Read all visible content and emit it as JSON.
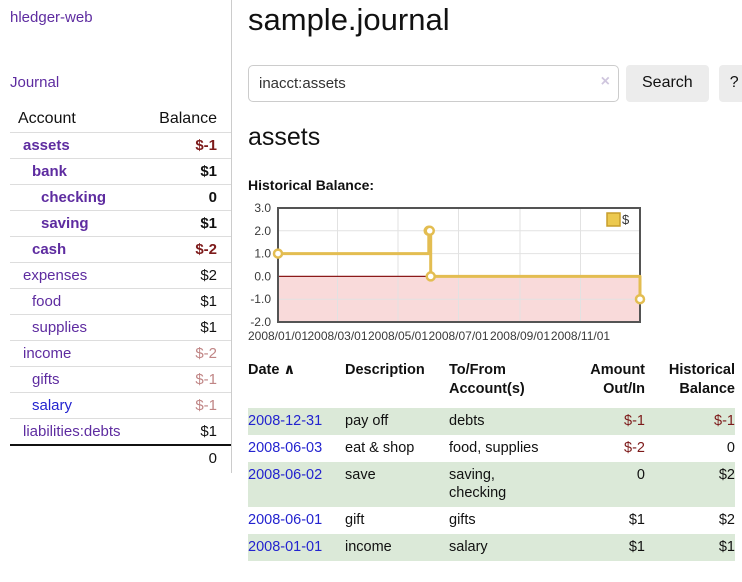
{
  "sidebar": {
    "title": "hledger-web",
    "journal_link": "Journal",
    "accounts_table": {
      "account_header": "Account",
      "balance_header": "Balance",
      "accounts": [
        {
          "name": "assets",
          "level": 1,
          "emphasized": true,
          "link_color": "purple",
          "balance": "$-1",
          "balance_color": "maroon"
        },
        {
          "name": "bank",
          "level": 2,
          "emphasized": true,
          "link_color": "purple",
          "balance": "$1",
          "balance_color": "black"
        },
        {
          "name": "checking",
          "level": 3,
          "emphasized": true,
          "link_color": "purple",
          "balance": "0",
          "balance_color": "black"
        },
        {
          "name": "saving",
          "level": 3,
          "emphasized": true,
          "link_color": "purple",
          "balance": "$1",
          "balance_color": "black"
        },
        {
          "name": "cash",
          "level": 2,
          "emphasized": true,
          "link_color": "purple",
          "balance": "$-2",
          "balance_color": "maroon"
        },
        {
          "name": "expenses",
          "level": 1,
          "emphasized": false,
          "link_color": "purple",
          "balance": "$2",
          "balance_color": "black"
        },
        {
          "name": "food",
          "level": 2,
          "emphasized": false,
          "link_color": "purple",
          "balance": "$1",
          "balance_color": "black"
        },
        {
          "name": "supplies",
          "level": 2,
          "emphasized": false,
          "link_color": "purple",
          "balance": "$1",
          "balance_color": "black"
        },
        {
          "name": "income",
          "level": 1,
          "emphasized": false,
          "link_color": "purple",
          "balance": "$-2",
          "balance_color": "rose"
        },
        {
          "name": "gifts",
          "level": 2,
          "emphasized": false,
          "link_color": "purple",
          "balance": "$-1",
          "balance_color": "rose"
        },
        {
          "name": "salary",
          "level": 2,
          "emphasized": false,
          "link_color": "blue",
          "balance": "$-1",
          "balance_color": "rose"
        },
        {
          "name": "liabilities:debts",
          "level": 1,
          "emphasized": false,
          "link_color": "purple",
          "balance": "$1",
          "balance_color": "black"
        }
      ],
      "total": "0"
    }
  },
  "main": {
    "title": "sample.journal",
    "search": {
      "value": "inacct:assets",
      "clear_icon": "×",
      "search_button": "Search",
      "help_button": "?"
    },
    "account_heading": "assets",
    "chart_title": "Historical Balance:"
  },
  "chart_data": {
    "type": "line",
    "title": "Historical Balance:",
    "xlim": [
      "2008-01-01",
      "2008-12-31"
    ],
    "ylim": [
      -2,
      3
    ],
    "x_ticks": [
      "2008/01/01",
      "2008/03/01",
      "2008/05/01",
      "2008/07/01",
      "2008/09/01",
      "2008/11/01"
    ],
    "y_ticks": [
      3,
      2,
      1,
      0,
      -1,
      -2
    ],
    "grid": true,
    "legend": {
      "position": "top-right",
      "entries": [
        "$"
      ]
    },
    "zero_line_color": "#8b1a1a",
    "negative_region_fill": "#f9dada",
    "series": [
      {
        "name": "$",
        "color": "#e3bd51",
        "interpolation": "step-after",
        "points": [
          {
            "x": "2008-01-01",
            "y": 1
          },
          {
            "x": "2008-06-01",
            "y": 2
          },
          {
            "x": "2008-06-02",
            "y": 2
          },
          {
            "x": "2008-06-03",
            "y": 0
          },
          {
            "x": "2008-12-31",
            "y": -1
          }
        ]
      }
    ]
  },
  "register": {
    "headers": {
      "date": "Date",
      "sort_indicator": "∧",
      "description": "Description",
      "accounts": "To/From Account(s)",
      "amount": "Amount Out/In",
      "balance": "Historical Balance"
    },
    "rows": [
      {
        "date": "2008-12-31",
        "description": "pay off",
        "accounts": "debts",
        "amount": "$-1",
        "amount_color": "maroon",
        "balance": "$-1",
        "balance_color": "maroon"
      },
      {
        "date": "2008-06-03",
        "description": "eat & shop",
        "accounts": "food, supplies",
        "amount": "$-2",
        "amount_color": "maroon",
        "balance": "0",
        "balance_color": "black"
      },
      {
        "date": "2008-06-02",
        "description": "save",
        "accounts": "saving, checking",
        "amount": "0",
        "amount_color": "black",
        "balance": "$2",
        "balance_color": "black"
      },
      {
        "date": "2008-06-01",
        "description": "gift",
        "accounts": "gifts",
        "amount": "$1",
        "amount_color": "black",
        "balance": "$2",
        "balance_color": "black"
      },
      {
        "date": "2008-01-01",
        "description": "income",
        "accounts": "salary",
        "amount": "$1",
        "amount_color": "black",
        "balance": "$1",
        "balance_color": "black"
      }
    ]
  },
  "colors": {
    "accent_purple": "#5e2ca0",
    "link_blue": "#2323cf",
    "negative_maroon": "#7d1a1a",
    "negative_rose": "#c08585",
    "row_stripe_green": "#dbe9d8",
    "chart_line_gold": "#e3bd51",
    "chart_zero_line": "#8b1a1a",
    "chart_negative_fill": "#f9dada"
  }
}
